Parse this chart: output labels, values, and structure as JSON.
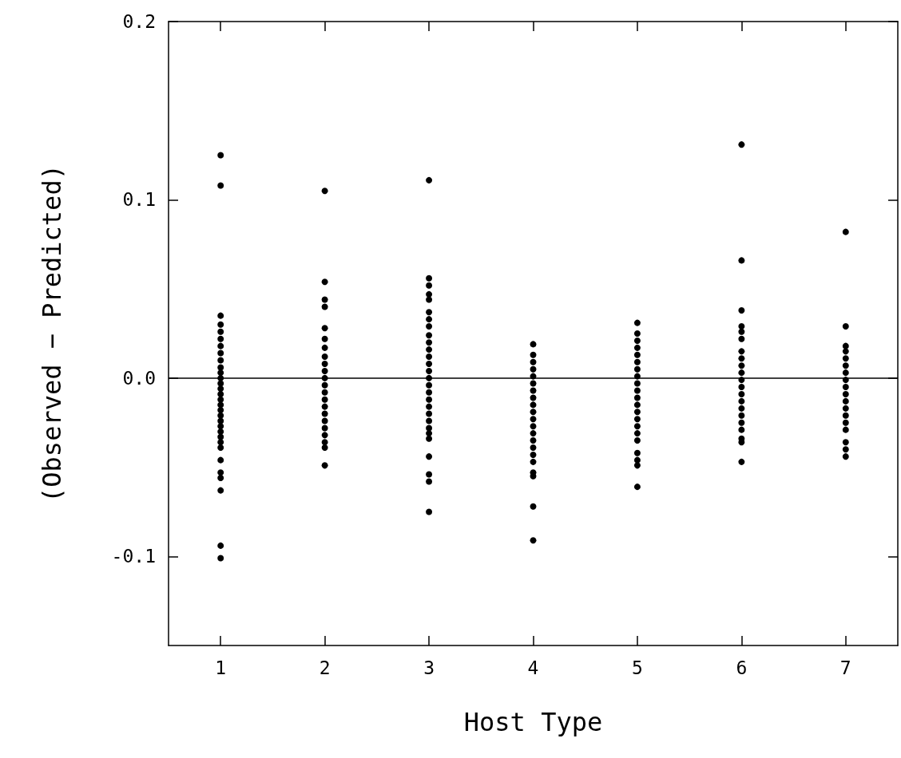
{
  "chart_data": {
    "type": "scatter",
    "xlabel": "Host Type",
    "ylabel": "(Observed − Predicted)",
    "xlim": [
      0.5,
      7.5
    ],
    "xticks": [
      1,
      2,
      3,
      4,
      5,
      6,
      7
    ],
    "ylim": [
      -0.15,
      0.2
    ],
    "yticks": [
      -0.1,
      {
        "value": 0,
        "label": "0.0"
      },
      0.1,
      0.2
    ],
    "grid": false,
    "marker": "circle",
    "ref_lines": [
      {
        "axis": "y",
        "value": 0,
        "color": "#000000"
      }
    ],
    "series": [
      {
        "color": "#000000",
        "x": [
          1,
          1,
          1,
          1,
          1,
          1,
          1,
          1,
          1,
          1,
          1,
          1,
          1,
          1,
          1,
          1,
          1,
          1,
          1,
          1,
          1,
          1,
          1,
          1,
          1,
          1,
          1,
          1,
          1,
          1,
          1,
          2,
          2,
          2,
          2,
          2,
          2,
          2,
          2,
          2,
          2,
          2,
          2,
          2,
          2,
          2,
          2,
          2,
          2,
          2,
          2,
          2,
          2,
          3,
          3,
          3,
          3,
          3,
          3,
          3,
          3,
          3,
          3,
          3,
          3,
          3,
          3,
          3,
          3,
          3,
          3,
          3,
          3,
          3,
          3,
          3,
          3,
          3,
          3,
          3,
          3,
          4,
          4,
          4,
          4,
          4,
          4,
          4,
          4,
          4,
          4,
          4,
          4,
          4,
          4,
          4,
          4,
          4,
          4,
          4,
          4,
          4,
          5,
          5,
          5,
          5,
          5,
          5,
          5,
          5,
          5,
          5,
          5,
          5,
          5,
          5,
          5,
          5,
          5,
          5,
          5,
          5,
          5,
          6,
          6,
          6,
          6,
          6,
          6,
          6,
          6,
          6,
          6,
          6,
          6,
          6,
          6,
          6,
          6,
          6,
          6,
          6,
          6,
          6,
          7,
          7,
          7,
          7,
          7,
          7,
          7,
          7,
          7,
          7,
          7,
          7,
          7,
          7,
          7,
          7,
          7,
          7
        ],
        "values": [
          0.125,
          0.108,
          0.035,
          0.03,
          0.026,
          0.022,
          0.018,
          0.014,
          0.01,
          0.006,
          0.003,
          0.0,
          -0.003,
          -0.006,
          -0.009,
          -0.012,
          -0.015,
          -0.018,
          -0.021,
          -0.024,
          -0.027,
          -0.03,
          -0.033,
          -0.036,
          -0.039,
          -0.046,
          -0.053,
          -0.056,
          -0.063,
          -0.094,
          -0.101,
          0.105,
          0.054,
          0.044,
          0.04,
          0.028,
          0.022,
          0.017,
          0.012,
          0.008,
          0.004,
          0.0,
          -0.004,
          -0.008,
          -0.012,
          -0.016,
          -0.02,
          -0.024,
          -0.028,
          -0.032,
          -0.036,
          -0.039,
          -0.049,
          0.111,
          0.056,
          0.052,
          0.047,
          0.044,
          0.037,
          0.033,
          0.029,
          0.024,
          0.02,
          0.016,
          0.012,
          0.008,
          0.004,
          0.0,
          -0.004,
          -0.008,
          -0.012,
          -0.016,
          -0.02,
          -0.024,
          -0.028,
          -0.031,
          -0.034,
          -0.044,
          -0.054,
          -0.058,
          -0.075,
          0.019,
          0.013,
          0.009,
          0.005,
          0.001,
          -0.003,
          -0.007,
          -0.011,
          -0.015,
          -0.019,
          -0.023,
          -0.027,
          -0.031,
          -0.035,
          -0.039,
          -0.043,
          -0.047,
          -0.053,
          -0.055,
          -0.072,
          -0.091,
          0.031,
          0.025,
          0.021,
          0.017,
          0.013,
          0.009,
          0.005,
          0.001,
          -0.003,
          -0.007,
          -0.011,
          -0.015,
          -0.019,
          -0.023,
          -0.027,
          -0.031,
          -0.035,
          -0.042,
          -0.046,
          -0.049,
          -0.061,
          0.131,
          0.066,
          0.038,
          0.029,
          0.026,
          0.022,
          0.015,
          0.011,
          0.007,
          0.003,
          -0.001,
          -0.005,
          -0.009,
          -0.013,
          -0.017,
          -0.021,
          -0.025,
          -0.029,
          -0.034,
          -0.036,
          -0.047,
          0.082,
          0.029,
          0.018,
          0.015,
          0.011,
          0.007,
          0.003,
          -0.001,
          -0.005,
          -0.009,
          -0.013,
          -0.017,
          -0.021,
          -0.025,
          -0.029,
          -0.036,
          -0.04,
          -0.044
        ]
      }
    ]
  }
}
